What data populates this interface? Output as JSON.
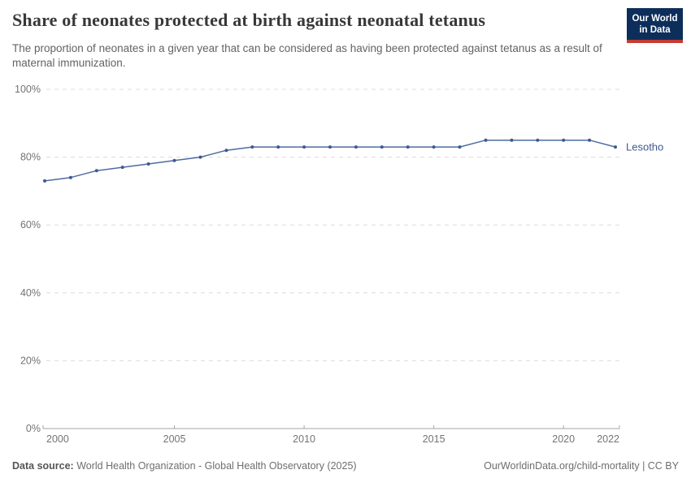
{
  "header": {
    "title": "Share of neonates protected at birth against neonatal tetanus",
    "subtitle": "The proportion of neonates in a given year that can be considered as having been protected against tetanus as a result of maternal immunization.",
    "logo": {
      "line1": "Our World",
      "line2": "in Data"
    }
  },
  "chart_data": {
    "type": "line",
    "title": "Share of neonates protected at birth against neonatal tetanus",
    "x": [
      2000,
      2001,
      2002,
      2003,
      2004,
      2005,
      2006,
      2007,
      2008,
      2009,
      2010,
      2011,
      2012,
      2013,
      2014,
      2015,
      2016,
      2017,
      2018,
      2019,
      2020,
      2021,
      2022
    ],
    "series": [
      {
        "name": "Lesotho",
        "values": [
          73,
          74,
          76,
          77,
          78,
          79,
          80,
          82,
          83,
          83,
          83,
          83,
          83,
          83,
          83,
          83,
          83,
          85,
          85,
          85,
          85,
          85,
          83
        ],
        "color": "#4e6ca0",
        "marker_color": "#3d5a8f",
        "label_color": "#3d5a8f"
      }
    ],
    "xlim": [
      2000,
      2022
    ],
    "ylim": [
      0,
      100
    ],
    "x_ticks": [
      2000,
      2005,
      2010,
      2015,
      2020,
      2022
    ],
    "y_ticks": [
      0,
      20,
      40,
      60,
      80,
      100
    ],
    "y_tick_suffix": "%",
    "grid": "horizontal-dashed",
    "legend_position": "end-of-line-label"
  },
  "footer": {
    "datasource_label": "Data source:",
    "datasource_text": " World Health Organization - Global Health Observatory (2025)",
    "credit": "OurWorldinData.org/child-mortality | CC BY"
  },
  "colors": {
    "grid": "#dcdcdc",
    "axis": "#a5a5a5",
    "tick_label": "#737373",
    "logo_bg": "#0d2e5b",
    "logo_accent": "#c53b33"
  }
}
